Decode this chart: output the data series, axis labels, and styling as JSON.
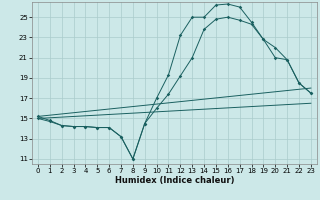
{
  "xlabel": "Humidex (Indice chaleur)",
  "background_color": "#cce8e8",
  "grid_color": "#aacccc",
  "line_color": "#1a6060",
  "xlim": [
    -0.5,
    23.5
  ],
  "ylim": [
    10.5,
    26.5
  ],
  "xticks": [
    0,
    1,
    2,
    3,
    4,
    5,
    6,
    7,
    8,
    9,
    10,
    11,
    12,
    13,
    14,
    15,
    16,
    17,
    18,
    19,
    20,
    21,
    22,
    23
  ],
  "yticks": [
    11,
    13,
    15,
    17,
    19,
    21,
    23,
    25
  ],
  "line1_x": [
    0,
    1,
    2,
    3,
    4,
    5,
    6,
    7,
    8,
    9,
    10,
    11,
    12,
    13,
    14,
    15,
    16,
    17,
    18,
    19,
    20,
    21,
    22,
    23
  ],
  "line1_y": [
    15.2,
    14.8,
    14.3,
    14.2,
    14.2,
    14.1,
    14.1,
    13.2,
    11.0,
    14.5,
    17.0,
    19.3,
    23.2,
    25.0,
    25.0,
    26.2,
    26.3,
    26.0,
    24.5,
    22.8,
    21.0,
    20.8,
    18.5,
    17.5
  ],
  "line2_x": [
    0,
    1,
    2,
    3,
    4,
    5,
    6,
    7,
    8,
    9,
    10,
    11,
    12,
    13,
    14,
    15,
    16,
    17,
    18,
    19,
    20,
    21,
    22,
    23
  ],
  "line2_y": [
    15.0,
    14.7,
    14.3,
    14.2,
    14.2,
    14.1,
    14.1,
    13.2,
    11.0,
    14.5,
    16.0,
    17.4,
    19.2,
    21.0,
    23.8,
    24.8,
    25.0,
    24.7,
    24.3,
    22.8,
    22.0,
    20.8,
    18.5,
    17.5
  ],
  "line3_x": [
    0,
    23
  ],
  "line3_y": [
    15.2,
    18.0
  ],
  "line4_x": [
    0,
    23
  ],
  "line4_y": [
    15.0,
    16.5
  ]
}
